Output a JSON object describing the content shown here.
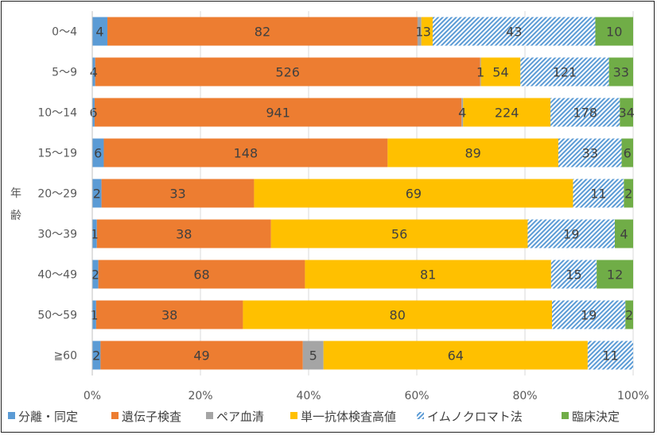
{
  "chart_data": {
    "type": "bar",
    "orientation": "horizontal",
    "stacked": "percent",
    "ylabel": "年齢",
    "xlabel": "",
    "xlim": [
      0,
      100
    ],
    "x_ticks": [
      "0%",
      "20%",
      "40%",
      "60%",
      "80%",
      "100%"
    ],
    "grid": true,
    "legend_position": "bottom",
    "categories": [
      "0〜4",
      "5〜9",
      "10〜14",
      "15〜19",
      "20〜29",
      "30〜39",
      "40〜49",
      "50〜59",
      "≧60"
    ],
    "series": [
      {
        "name": "分離・同定",
        "color": "#5B9BD5",
        "values": [
          4,
          4,
          6,
          6,
          2,
          1,
          2,
          1,
          2
        ]
      },
      {
        "name": "遺伝子検査",
        "color": "#ED7D31",
        "values": [
          82,
          526,
          941,
          148,
          33,
          38,
          68,
          38,
          49
        ]
      },
      {
        "name": "ペア血清",
        "color": "#A5A5A5",
        "values": [
          1,
          1,
          4,
          0,
          0,
          0,
          0,
          0,
          5
        ]
      },
      {
        "name": "単一抗体検査高値",
        "color": "#FFC000",
        "values": [
          3,
          54,
          224,
          89,
          69,
          56,
          81,
          80,
          64
        ]
      },
      {
        "name": "イムノクロマト法",
        "color": "#5B9BD5",
        "pattern": "hatch",
        "values": [
          43,
          121,
          178,
          33,
          11,
          19,
          15,
          19,
          11
        ]
      },
      {
        "name": "臨床決定",
        "color": "#70AD47",
        "values": [
          10,
          33,
          34,
          6,
          2,
          4,
          12,
          2,
          0
        ]
      }
    ]
  }
}
